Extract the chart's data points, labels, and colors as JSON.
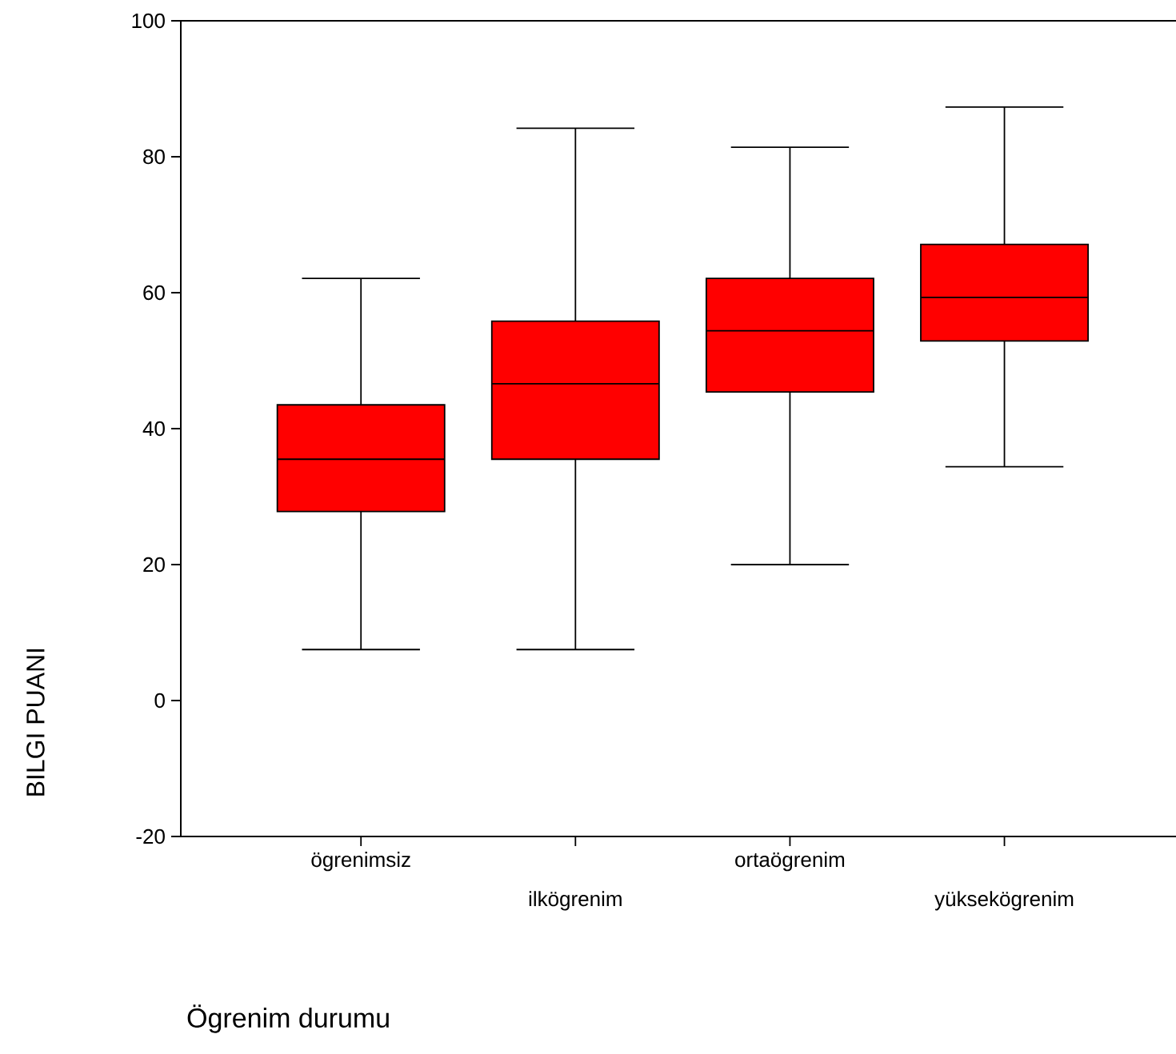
{
  "chart_data": {
    "type": "box",
    "xlabel": "Ögrenim durumu",
    "ylabel": "BILGI PUANI",
    "categories": [
      "ögrenimsiz",
      "ilkögrenim",
      "ortaögrenim",
      "yüksekögrenim"
    ],
    "color": "#ff0000",
    "boxes": [
      {
        "low": 7.5,
        "q1": 27.8,
        "median": 35.5,
        "q3": 43.5,
        "high": 62.1
      },
      {
        "low": 7.5,
        "q1": 35.5,
        "median": 46.6,
        "q3": 55.8,
        "high": 84.2
      },
      {
        "low": 20,
        "q1": 45.4,
        "median": 54.4,
        "q3": 62.1,
        "high": 81.4
      },
      {
        "low": 34.4,
        "q1": 52.9,
        "median": 59.3,
        "q3": 67.1,
        "high": 87.3
      }
    ],
    "ylim": [
      -20,
      100
    ],
    "yticks": [
      -20,
      0,
      20,
      40,
      60,
      80,
      100
    ]
  }
}
